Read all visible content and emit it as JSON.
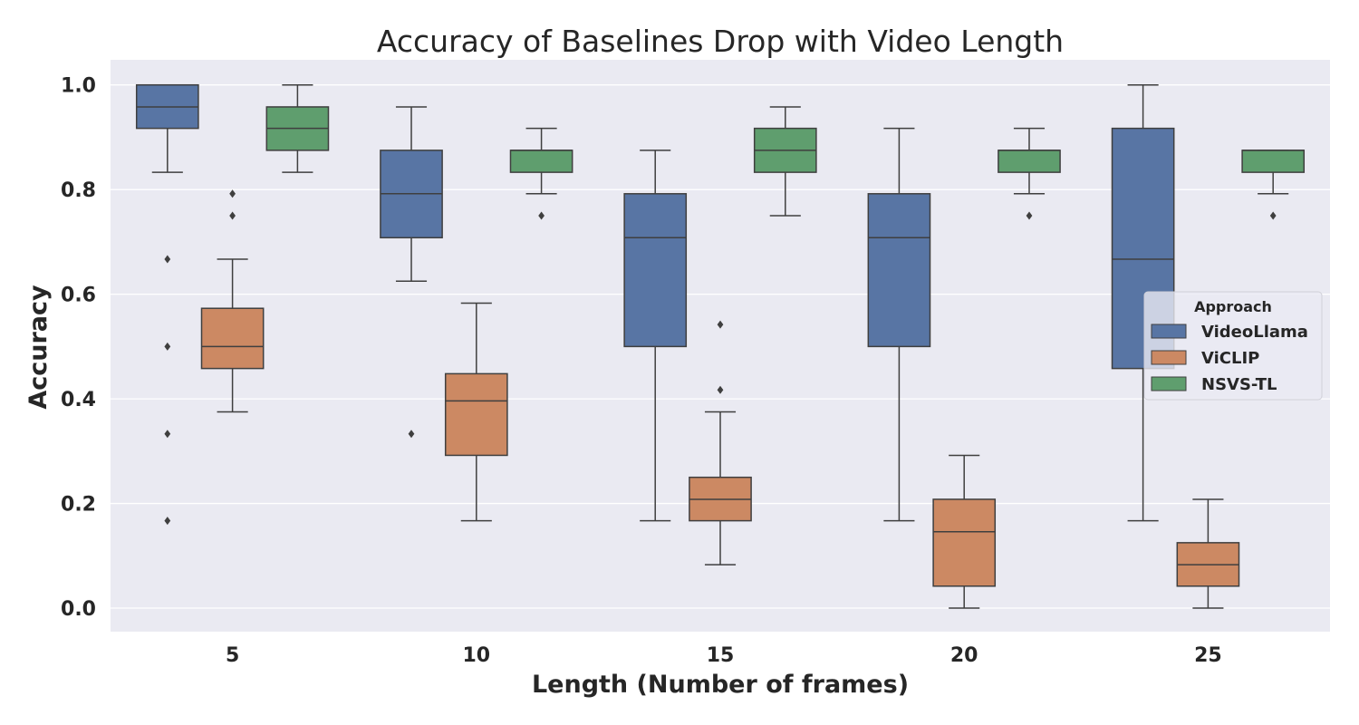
{
  "chart_data": {
    "type": "box",
    "title": "Accuracy of Baselines Drop with Video Length",
    "xlabel": "Length (Number of frames)",
    "ylabel": "Accuracy",
    "categories": [
      "5",
      "10",
      "15",
      "20",
      "25"
    ],
    "ylim": [
      -0.045,
      1.048
    ],
    "yticks": [
      "0.0",
      "0.2",
      "0.4",
      "0.6",
      "0.8",
      "1.0"
    ],
    "grid": true,
    "legend": {
      "title": "Approach",
      "position": "right"
    },
    "series": [
      {
        "name": "VideoLlama",
        "color": "#5875a4",
        "boxes": [
          {
            "whisker_low": 0.833,
            "q1": 0.917,
            "median": 0.958,
            "q3": 1.0,
            "whisker_high": 1.0,
            "outliers": [
              0.667,
              0.5,
              0.333,
              0.167
            ]
          },
          {
            "whisker_low": 0.625,
            "q1": 0.708,
            "median": 0.792,
            "q3": 0.875,
            "whisker_high": 0.958,
            "outliers": [
              0.333
            ]
          },
          {
            "whisker_low": 0.167,
            "q1": 0.5,
            "median": 0.708,
            "q3": 0.792,
            "whisker_high": 0.875,
            "outliers": []
          },
          {
            "whisker_low": 0.167,
            "q1": 0.5,
            "median": 0.708,
            "q3": 0.792,
            "whisker_high": 0.917,
            "outliers": []
          },
          {
            "whisker_low": 0.167,
            "q1": 0.458,
            "median": 0.667,
            "q3": 0.917,
            "whisker_high": 1.0,
            "outliers": []
          }
        ]
      },
      {
        "name": "ViCLIP",
        "color": "#cc8963",
        "boxes": [
          {
            "whisker_low": 0.375,
            "q1": 0.458,
            "median": 0.5,
            "q3": 0.573,
            "whisker_high": 0.667,
            "outliers": [
              0.792,
              0.75
            ]
          },
          {
            "whisker_low": 0.167,
            "q1": 0.292,
            "median": 0.396,
            "q3": 0.448,
            "whisker_high": 0.583,
            "outliers": []
          },
          {
            "whisker_low": 0.083,
            "q1": 0.167,
            "median": 0.208,
            "q3": 0.25,
            "whisker_high": 0.375,
            "outliers": [
              0.542,
              0.417
            ]
          },
          {
            "whisker_low": 0.0,
            "q1": 0.042,
            "median": 0.146,
            "q3": 0.208,
            "whisker_high": 0.292,
            "outliers": []
          },
          {
            "whisker_low": 0.0,
            "q1": 0.042,
            "median": 0.083,
            "q3": 0.125,
            "whisker_high": 0.208,
            "outliers": []
          }
        ]
      },
      {
        "name": "NSVS-TL",
        "color": "#5f9e6e",
        "boxes": [
          {
            "whisker_low": 0.833,
            "q1": 0.875,
            "median": 0.917,
            "q3": 0.958,
            "whisker_high": 1.0,
            "outliers": []
          },
          {
            "whisker_low": 0.792,
            "q1": 0.833,
            "median": 0.875,
            "q3": 0.875,
            "whisker_high": 0.917,
            "outliers": [
              0.75
            ]
          },
          {
            "whisker_low": 0.75,
            "q1": 0.833,
            "median": 0.875,
            "q3": 0.917,
            "whisker_high": 0.958,
            "outliers": []
          },
          {
            "whisker_low": 0.792,
            "q1": 0.833,
            "median": 0.875,
            "q3": 0.875,
            "whisker_high": 0.917,
            "outliers": [
              0.75
            ]
          },
          {
            "whisker_low": 0.792,
            "q1": 0.833,
            "median": 0.875,
            "q3": 0.875,
            "whisker_high": 0.875,
            "outliers": [
              0.75
            ]
          }
        ]
      }
    ]
  }
}
